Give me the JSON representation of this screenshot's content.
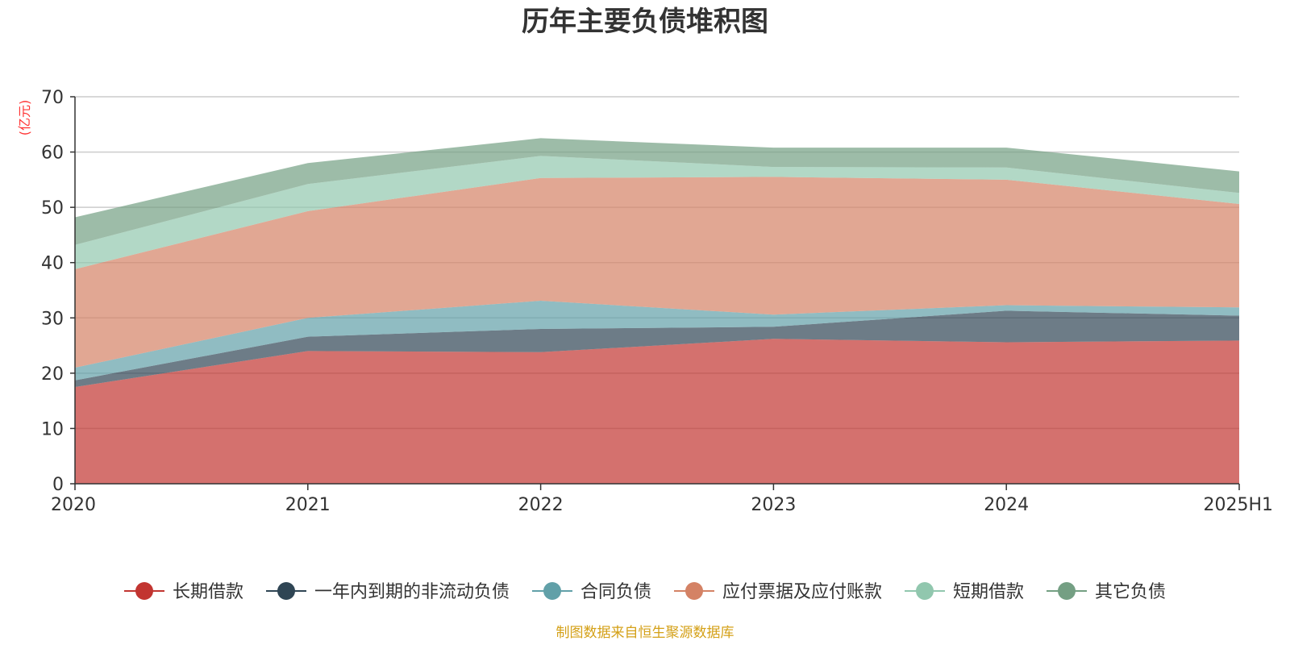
{
  "chart_data": {
    "type": "area",
    "stacked": true,
    "title": "历年主要负债堆积图",
    "y_unit_label": "(亿元)",
    "x": [
      "2020",
      "2021",
      "2022",
      "2023",
      "2024",
      "2025H1"
    ],
    "ylim": [
      0,
      70
    ],
    "y_ticks": [
      0,
      10,
      20,
      30,
      40,
      50,
      60,
      70
    ],
    "grid": true,
    "legend_position": "bottom",
    "series": [
      {
        "name": "长期借款",
        "color": "#c23531",
        "values": [
          17.5,
          24.0,
          23.8,
          26.2,
          25.6,
          25.9
        ]
      },
      {
        "name": "一年内到期的非流动负债",
        "color": "#2f4554",
        "values": [
          1.2,
          2.6,
          4.2,
          2.2,
          5.7,
          4.5
        ]
      },
      {
        "name": "合同负债",
        "color": "#61a0a8",
        "values": [
          2.3,
          3.4,
          5.1,
          2.2,
          1.0,
          1.5
        ]
      },
      {
        "name": "应付票据及应付账款",
        "color": "#d48265",
        "values": [
          17.8,
          19.3,
          22.2,
          24.9,
          22.7,
          18.7
        ]
      },
      {
        "name": "短期借款",
        "color": "#91c7ae",
        "values": [
          4.4,
          4.9,
          4.0,
          1.8,
          2.2,
          2.0
        ]
      },
      {
        "name": "其它负债",
        "color": "#749f83",
        "values": [
          5.0,
          3.8,
          3.2,
          3.5,
          3.6,
          3.9
        ]
      }
    ]
  },
  "source_note": "制图数据来自恒生聚源数据库"
}
